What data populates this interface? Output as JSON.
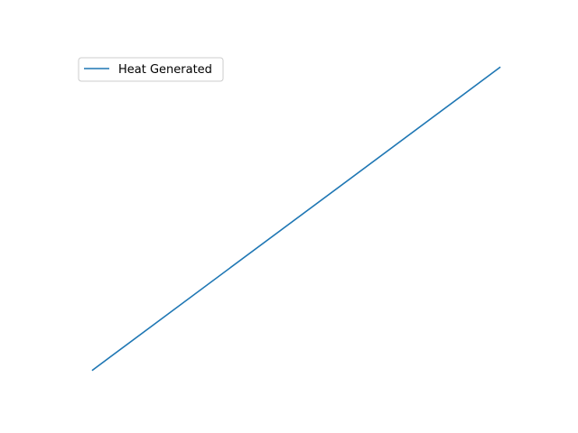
{
  "chart_data": {
    "type": "line",
    "axes_visible": false,
    "grid": false,
    "legend_position": "top-left",
    "series": [
      {
        "name": "Heat Generated",
        "color": "#1f77b4",
        "x": [
          0,
          1
        ],
        "y": [
          0,
          1
        ]
      }
    ]
  }
}
